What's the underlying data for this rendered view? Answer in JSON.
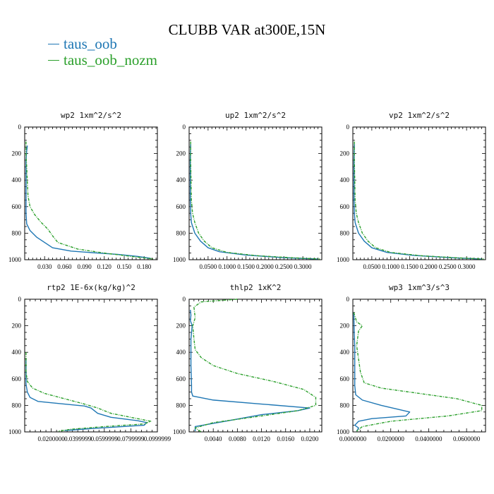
{
  "figure": {
    "title": "CLUBB VAR at300E,15N",
    "legend": [
      {
        "name": "taus_oob",
        "color": "#1f77b4"
      },
      {
        "name": "taus_oob_nozm",
        "color": "#2ca02c"
      }
    ]
  },
  "chart_data": [
    {
      "type": "line",
      "title": "wp2  1xm^2/s^2",
      "xlim": [
        0,
        0.2
      ],
      "ylim": [
        1000,
        0
      ],
      "xticks": [
        0.03,
        0.06,
        0.09,
        0.12,
        0.15,
        0.18
      ],
      "xtick_labels": [
        "0.030",
        "0.060",
        "0.090",
        "0.120",
        "0.150",
        "0.180"
      ],
      "yticks": [
        0,
        200,
        400,
        600,
        800,
        1000
      ],
      "ytick_labels": [
        "0",
        "200",
        "400",
        "600",
        "800",
        "1000"
      ],
      "series": [
        {
          "name": "taus_oob",
          "color": "#1f77b4",
          "dashed": false,
          "x": [
            0.004,
            0.003,
            0.002,
            0.002,
            0.002,
            0.002,
            0.003,
            0.008,
            0.018,
            0.03,
            0.042,
            0.07,
            0.11,
            0.14,
            0.17,
            0.19
          ],
          "y": [
            140,
            180,
            250,
            350,
            500,
            650,
            730,
            780,
            830,
            870,
            910,
            935,
            950,
            960,
            975,
            990
          ]
        },
        {
          "name": "taus_oob_nozm",
          "color": "#2ca02c",
          "dashed": true,
          "x": [
            0.002,
            0.002,
            0.003,
            0.004,
            0.005,
            0.008,
            0.015,
            0.025,
            0.035,
            0.042,
            0.05,
            0.08,
            0.12,
            0.16,
            0.195
          ],
          "y": [
            110,
            200,
            300,
            420,
            520,
            600,
            660,
            720,
            770,
            820,
            870,
            920,
            950,
            975,
            995
          ]
        }
      ]
    },
    {
      "type": "line",
      "title": "up2  1xm^2/s^2",
      "xlim": [
        0,
        0.35
      ],
      "ylim": [
        1000,
        0
      ],
      "xticks": [
        0.05,
        0.1,
        0.15,
        0.2,
        0.25,
        0.3
      ],
      "xtick_labels": [
        "0.0500",
        "0.1000",
        "0.1500",
        "0.2000",
        "0.2500",
        "0.3000"
      ],
      "yticks": [
        0,
        200,
        400,
        600,
        800,
        1000
      ],
      "ytick_labels": [
        "0",
        "200",
        "400",
        "600",
        "800",
        "1000"
      ],
      "series": [
        {
          "name": "taus_oob",
          "color": "#1f77b4",
          "dashed": false,
          "x": [
            0.004,
            0.003,
            0.003,
            0.003,
            0.004,
            0.006,
            0.015,
            0.03,
            0.05,
            0.08,
            0.15,
            0.25,
            0.34
          ],
          "y": [
            130,
            250,
            400,
            550,
            650,
            720,
            800,
            860,
            910,
            940,
            965,
            985,
            995
          ]
        },
        {
          "name": "taus_oob_nozm",
          "color": "#2ca02c",
          "dashed": true,
          "x": [
            0.004,
            0.004,
            0.005,
            0.006,
            0.009,
            0.015,
            0.025,
            0.04,
            0.06,
            0.1,
            0.18,
            0.27,
            0.345
          ],
          "y": [
            110,
            250,
            400,
            550,
            650,
            720,
            800,
            860,
            910,
            945,
            970,
            985,
            995
          ]
        }
      ]
    },
    {
      "type": "line",
      "title": "vp2  1xm^2/s^2",
      "xlim": [
        0,
        0.35
      ],
      "ylim": [
        1000,
        0
      ],
      "xticks": [
        0.05,
        0.1,
        0.15,
        0.2,
        0.25,
        0.3
      ],
      "xtick_labels": [
        "0.0500",
        "0.1000",
        "0.1500",
        "0.2000",
        "0.2500",
        "0.3000"
      ],
      "yticks": [
        0,
        200,
        400,
        600,
        800,
        1000
      ],
      "ytick_labels": [
        "0",
        "200",
        "400",
        "600",
        "800",
        "1000"
      ],
      "series": [
        {
          "name": "taus_oob",
          "color": "#1f77b4",
          "dashed": false,
          "x": [
            0.004,
            0.003,
            0.003,
            0.003,
            0.004,
            0.006,
            0.015,
            0.03,
            0.05,
            0.09,
            0.16,
            0.26,
            0.34
          ],
          "y": [
            130,
            250,
            400,
            550,
            650,
            720,
            800,
            860,
            910,
            945,
            968,
            985,
            995
          ]
        },
        {
          "name": "taus_oob_nozm",
          "color": "#2ca02c",
          "dashed": true,
          "x": [
            0.004,
            0.004,
            0.005,
            0.006,
            0.009,
            0.015,
            0.025,
            0.04,
            0.06,
            0.1,
            0.18,
            0.27,
            0.345
          ],
          "y": [
            110,
            250,
            400,
            550,
            650,
            720,
            800,
            860,
            910,
            945,
            970,
            985,
            995
          ]
        }
      ]
    },
    {
      "type": "line",
      "title": "rtp2  1E-6x(kg/kg)^2",
      "xlim": [
        0,
        0.1
      ],
      "ylim": [
        1000,
        0
      ],
      "xticks": [
        0.02,
        0.04,
        0.06,
        0.08,
        0.1
      ],
      "xtick_labels": [
        "0.0200000",
        "0.0399999",
        "0.0599999",
        "0.0799999",
        "0.0999999"
      ],
      "yticks": [
        0,
        200,
        400,
        600,
        800,
        1000
      ],
      "ytick_labels": [
        "0",
        "200",
        "400",
        "600",
        "800",
        "1000"
      ],
      "series": [
        {
          "name": "taus_oob",
          "color": "#1f77b4",
          "dashed": false,
          "x": [
            0.001,
            0.001,
            0.001,
            0.002,
            0.004,
            0.01,
            0.03,
            0.045,
            0.05,
            0.055,
            0.065,
            0.085,
            0.092,
            0.09,
            0.05,
            0.03
          ],
          "y": [
            450,
            550,
            640,
            700,
            740,
            770,
            790,
            805,
            820,
            860,
            890,
            915,
            930,
            950,
            975,
            990
          ]
        },
        {
          "name": "taus_oob_nozm",
          "color": "#2ca02c",
          "dashed": true,
          "x": [
            0.001,
            0.001,
            0.002,
            0.006,
            0.015,
            0.03,
            0.045,
            0.055,
            0.065,
            0.08,
            0.095,
            0.09,
            0.06,
            0.035,
            0.025
          ],
          "y": [
            400,
            550,
            620,
            670,
            710,
            750,
            790,
            820,
            860,
            890,
            920,
            940,
            960,
            980,
            995
          ]
        }
      ]
    },
    {
      "type": "line",
      "title": "thlp2  1xK^2",
      "xlim": [
        0,
        0.022
      ],
      "ylim": [
        1000,
        0
      ],
      "xticks": [
        0.004,
        0.008,
        0.012,
        0.016,
        0.02
      ],
      "xtick_labels": [
        "0.0040",
        "0.0080",
        "0.0120",
        "0.0160",
        "0.0200"
      ],
      "yticks": [
        0,
        200,
        400,
        600,
        800,
        1000
      ],
      "ytick_labels": [
        "0",
        "200",
        "400",
        "600",
        "800",
        "1000"
      ],
      "series": [
        {
          "name": "taus_oob",
          "color": "#1f77b4",
          "dashed": false,
          "x": [
            0.0002,
            0.0003,
            0.0002,
            0.0005,
            0.0003,
            0.0003,
            0.0004,
            0.0004,
            0.0006,
            0.004,
            0.012,
            0.02,
            0.018,
            0.012,
            0.006,
            0.001,
            0.001
          ],
          "y": [
            80,
            120,
            160,
            200,
            300,
            500,
            650,
            700,
            730,
            760,
            790,
            820,
            840,
            870,
            920,
            960,
            995
          ]
        },
        {
          "name": "taus_oob_nozm",
          "color": "#2ca02c",
          "dashed": true,
          "x": [
            0.008,
            0.002,
            0.0008,
            0.001,
            0.0006,
            0.0008,
            0.001,
            0.002,
            0.004,
            0.008,
            0.014,
            0.019,
            0.021,
            0.021,
            0.018,
            0.012,
            0.004,
            0.001,
            0.002
          ],
          "y": [
            0,
            20,
            60,
            140,
            200,
            300,
            380,
            440,
            500,
            560,
            620,
            680,
            740,
            800,
            840,
            880,
            930,
            970,
            1000
          ]
        }
      ]
    },
    {
      "type": "line",
      "title": "wp3  1xm^3/s^3",
      "xlim": [
        0,
        0.07
      ],
      "ylim": [
        1000,
        0
      ],
      "xticks": [
        0,
        0.02,
        0.04,
        0.06
      ],
      "xtick_labels": [
        "0.0000000",
        "0.0200000",
        "0.0400000",
        "0.0600000"
      ],
      "yticks": [
        0,
        200,
        400,
        600,
        800,
        1000
      ],
      "ytick_labels": [
        "0",
        "200",
        "400",
        "600",
        "800",
        "1000"
      ],
      "series": [
        {
          "name": "taus_oob",
          "color": "#1f77b4",
          "dashed": false,
          "x": [
            0.0005,
            0.0007,
            0.001,
            0.001,
            0.001,
            0.001,
            0.0015,
            0.005,
            0.015,
            0.03,
            0.028,
            0.01,
            0.003,
            0.001,
            0.003,
            0.002
          ],
          "y": [
            100,
            250,
            350,
            450,
            550,
            650,
            720,
            760,
            800,
            850,
            880,
            900,
            920,
            950,
            970,
            995
          ]
        },
        {
          "name": "taus_oob_nozm",
          "color": "#2ca02c",
          "dashed": true,
          "x": [
            0.0005,
            0.002,
            0.005,
            0.003,
            0.002,
            0.003,
            0.004,
            0.006,
            0.015,
            0.035,
            0.055,
            0.068,
            0.068,
            0.05,
            0.02,
            0.005,
            0.002
          ],
          "y": [
            100,
            170,
            200,
            240,
            350,
            450,
            550,
            630,
            670,
            710,
            750,
            800,
            840,
            880,
            920,
            960,
            995
          ]
        }
      ]
    }
  ]
}
